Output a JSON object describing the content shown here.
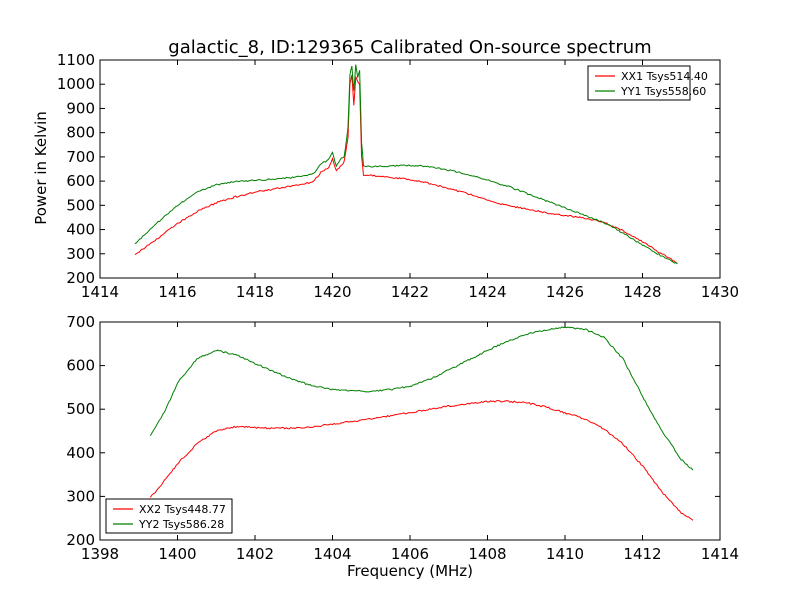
{
  "chart_data": [
    {
      "type": "line",
      "title": "galactic_8, ID:129365 Calibrated On-source spectrum",
      "xlabel": "",
      "ylabel": "Power in Kelvin",
      "xlim": [
        1414,
        1430
      ],
      "ylim": [
        200,
        1100
      ],
      "xticks": [
        1414,
        1416,
        1418,
        1420,
        1422,
        1424,
        1426,
        1428,
        1430
      ],
      "yticks": [
        200,
        300,
        400,
        500,
        600,
        700,
        800,
        900,
        1000,
        1100
      ],
      "legend_position": "top-right",
      "series": [
        {
          "name": "XX1 Tsys514.40",
          "color": "#ff0000",
          "x": [
            1414.9,
            1415.5,
            1416.0,
            1416.5,
            1417.0,
            1417.5,
            1418.0,
            1418.5,
            1419.0,
            1419.5,
            1419.7,
            1419.9,
            1420.0,
            1420.1,
            1420.2,
            1420.3,
            1420.4,
            1420.45,
            1420.5,
            1420.55,
            1420.6,
            1420.65,
            1420.7,
            1420.75,
            1420.8,
            1421.0,
            1421.5,
            1422.0,
            1422.5,
            1423.0,
            1423.5,
            1424.0,
            1424.5,
            1425.0,
            1425.5,
            1426.0,
            1426.5,
            1427.0,
            1427.5,
            1428.0,
            1428.5,
            1428.9
          ],
          "y": [
            295,
            365,
            425,
            475,
            510,
            535,
            555,
            568,
            580,
            598,
            635,
            655,
            690,
            645,
            660,
            680,
            780,
            1000,
            1040,
            910,
            1030,
            1010,
            1000,
            700,
            625,
            623,
            616,
            606,
            590,
            570,
            548,
            522,
            500,
            485,
            470,
            458,
            448,
            430,
            395,
            350,
            300,
            262
          ]
        },
        {
          "name": "YY1 Tsys558.60",
          "color": "#008000",
          "x": [
            1414.9,
            1415.5,
            1416.0,
            1416.5,
            1417.0,
            1417.5,
            1418.0,
            1418.5,
            1419.0,
            1419.5,
            1419.7,
            1419.9,
            1420.0,
            1420.1,
            1420.2,
            1420.3,
            1420.4,
            1420.45,
            1420.5,
            1420.55,
            1420.6,
            1420.65,
            1420.7,
            1420.75,
            1420.8,
            1421.0,
            1421.5,
            1422.0,
            1422.5,
            1423.0,
            1423.5,
            1424.0,
            1424.5,
            1425.0,
            1425.5,
            1426.0,
            1426.5,
            1427.0,
            1427.5,
            1428.0,
            1428.5,
            1428.9
          ],
          "y": [
            340,
            430,
            500,
            555,
            585,
            597,
            603,
            608,
            615,
            630,
            670,
            690,
            720,
            660,
            690,
            700,
            820,
            1040,
            1075,
            970,
            1080,
            1030,
            1060,
            760,
            665,
            660,
            662,
            665,
            660,
            645,
            628,
            605,
            580,
            550,
            520,
            490,
            460,
            430,
            385,
            335,
            290,
            258
          ]
        }
      ]
    },
    {
      "type": "line",
      "title": "",
      "xlabel": "Frequency (MHz)",
      "ylabel": "",
      "xlim": [
        1398,
        1414
      ],
      "ylim": [
        200,
        700
      ],
      "xticks": [
        1398,
        1400,
        1402,
        1404,
        1406,
        1408,
        1410,
        1412,
        1414
      ],
      "yticks": [
        200,
        300,
        400,
        500,
        600,
        700
      ],
      "legend_position": "bottom-left",
      "series": [
        {
          "name": "XX2 Tsys448.77",
          "color": "#ff0000",
          "x": [
            1399.3,
            1399.7,
            1400.0,
            1400.5,
            1401.0,
            1401.5,
            1402.0,
            1402.5,
            1403.0,
            1403.5,
            1404.0,
            1404.5,
            1405.0,
            1405.5,
            1406.0,
            1406.5,
            1407.0,
            1407.5,
            1408.0,
            1408.5,
            1409.0,
            1409.5,
            1410.0,
            1410.5,
            1411.0,
            1411.5,
            1412.0,
            1412.5,
            1413.0,
            1413.3
          ],
          "y": [
            297,
            340,
            375,
            420,
            450,
            460,
            458,
            456,
            457,
            460,
            465,
            472,
            478,
            485,
            492,
            500,
            507,
            513,
            518,
            518,
            515,
            505,
            492,
            478,
            455,
            420,
            370,
            310,
            262,
            245
          ]
        },
        {
          "name": "YY2 Tsys586.28",
          "color": "#008000",
          "x": [
            1399.3,
            1399.7,
            1400.0,
            1400.5,
            1401.0,
            1401.5,
            1402.0,
            1402.5,
            1403.0,
            1403.5,
            1404.0,
            1404.5,
            1405.0,
            1405.5,
            1406.0,
            1406.5,
            1407.0,
            1407.5,
            1408.0,
            1408.5,
            1409.0,
            1409.5,
            1410.0,
            1410.5,
            1411.0,
            1411.5,
            1412.0,
            1412.5,
            1413.0,
            1413.3
          ],
          "y": [
            438,
            500,
            560,
            615,
            635,
            625,
            605,
            585,
            568,
            553,
            545,
            542,
            541,
            545,
            553,
            568,
            590,
            612,
            635,
            655,
            672,
            682,
            688,
            684,
            665,
            615,
            530,
            450,
            385,
            360
          ]
        }
      ]
    }
  ]
}
